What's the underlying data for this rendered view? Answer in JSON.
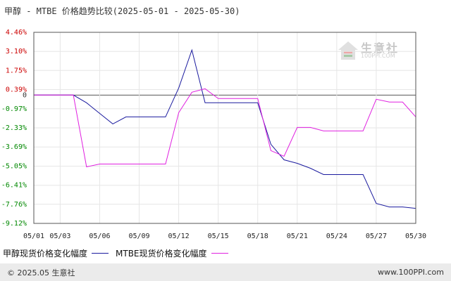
{
  "title": "甲醇 - MTBE 价格趋势比较(2025-05-01 - 2025-05-30)",
  "watermark": {
    "text": "生意社",
    "url": "100PPI.COM"
  },
  "footer": {
    "copyright": "© 2025.05 生意社",
    "site": "www.100PPI.com"
  },
  "colors": {
    "series1": "#1a1a9e",
    "series2": "#e020e0",
    "positive_tick": "#cc0000",
    "negative_tick": "#008800",
    "zero_line": "#555555"
  },
  "chart_data": {
    "type": "line",
    "title": "甲醇 - MTBE 价格趋势比较(2025-05-01 - 2025-05-30)",
    "xlabel": "",
    "ylabel": "",
    "ylim": [
      -9.12,
      4.46
    ],
    "yticks": [
      "4.46%",
      "3.10%",
      "1.75%",
      "0.39%",
      "0",
      "-0.97%",
      "-2.33%",
      "-3.69%",
      "-5.05%",
      "-6.41%",
      "-7.76%",
      "-9.12%"
    ],
    "ytick_values": [
      4.46,
      3.1,
      1.75,
      0.39,
      0,
      -0.97,
      -2.33,
      -3.69,
      -5.05,
      -6.41,
      -7.76,
      -9.12
    ],
    "xticks": [
      "05/01",
      "05/03",
      "05/06",
      "05/09",
      "05/12",
      "05/15",
      "05/18",
      "05/21",
      "05/24",
      "05/27",
      "05/30"
    ],
    "xtick_days": [
      1,
      3,
      6,
      9,
      12,
      15,
      18,
      21,
      24,
      27,
      30
    ],
    "x_range": [
      1,
      30
    ],
    "legend_position": "bottom",
    "series": [
      {
        "name": "甲醇现货价格变化幅度",
        "color": "#1a1a9e",
        "points": [
          [
            1,
            0
          ],
          [
            2,
            0
          ],
          [
            3,
            0
          ],
          [
            4,
            0
          ],
          [
            5,
            -0.55
          ],
          [
            6,
            -1.3
          ],
          [
            7,
            -2.05
          ],
          [
            8,
            -1.55
          ],
          [
            9,
            -1.55
          ],
          [
            10,
            -1.55
          ],
          [
            11,
            -1.55
          ],
          [
            12,
            0.5
          ],
          [
            13,
            3.2
          ],
          [
            14,
            -0.55
          ],
          [
            15,
            -0.55
          ],
          [
            16,
            -0.55
          ],
          [
            17,
            -0.55
          ],
          [
            18,
            -0.55
          ],
          [
            19,
            -3.5
          ],
          [
            20,
            -4.6
          ],
          [
            21,
            -4.85
          ],
          [
            22,
            -5.2
          ],
          [
            23,
            -5.65
          ],
          [
            24,
            -5.65
          ],
          [
            25,
            -5.65
          ],
          [
            26,
            -5.65
          ],
          [
            27,
            -7.7
          ],
          [
            28,
            -7.95
          ],
          [
            29,
            -7.95
          ],
          [
            30,
            -8.05
          ]
        ]
      },
      {
        "name": "MTBE现货价格变化幅度",
        "color": "#e020e0",
        "points": [
          [
            1,
            0
          ],
          [
            2,
            0
          ],
          [
            3,
            0
          ],
          [
            4,
            0
          ],
          [
            5,
            -5.1
          ],
          [
            6,
            -4.9
          ],
          [
            7,
            -4.9
          ],
          [
            8,
            -4.9
          ],
          [
            9,
            -4.9
          ],
          [
            10,
            -4.9
          ],
          [
            11,
            -4.9
          ],
          [
            12,
            -1.25
          ],
          [
            13,
            0.2
          ],
          [
            14,
            0.45
          ],
          [
            15,
            -0.25
          ],
          [
            16,
            -0.25
          ],
          [
            17,
            -0.25
          ],
          [
            18,
            -0.25
          ],
          [
            19,
            -3.95
          ],
          [
            20,
            -4.35
          ],
          [
            21,
            -2.3
          ],
          [
            22,
            -2.3
          ],
          [
            23,
            -2.55
          ],
          [
            24,
            -2.55
          ],
          [
            25,
            -2.55
          ],
          [
            26,
            -2.55
          ],
          [
            27,
            -0.3
          ],
          [
            28,
            -0.5
          ],
          [
            29,
            -0.5
          ],
          [
            30,
            -1.55
          ]
        ]
      }
    ]
  }
}
